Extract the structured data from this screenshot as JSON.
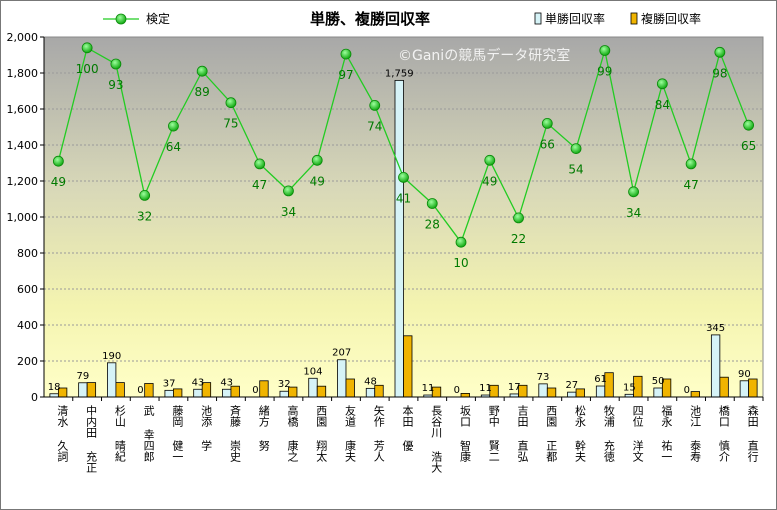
{
  "chart_data": {
    "type": "bar",
    "title": "単勝、複勝回収率",
    "watermark": "©Ganiの競馬データ研究室",
    "categories": [
      "清水 久詞",
      "中内田 充正",
      "杉山 晴紀",
      "武 幸四郎",
      "藤岡 健一",
      "池添 学",
      "斉藤 崇史",
      "緒方 努",
      "高橋 康之",
      "西園 翔太",
      "友道 康夫",
      "矢作 芳人",
      "本田 優",
      "長谷川 浩大",
      "坂口 智康",
      "野中 賢二",
      "吉田 直弘",
      "西園 正都",
      "松永 幹夫",
      "牧浦 充徳",
      "四位 洋文",
      "福永 祐一",
      "池江 泰寿",
      "橋口 慎介",
      "森田 直行"
    ],
    "series": [
      {
        "name": "単勝回収率",
        "color": "#d6f3f7",
        "values": [
          18,
          79,
          190,
          0,
          37,
          43,
          43,
          0,
          32,
          104,
          207,
          48,
          1759,
          11,
          0,
          11,
          17,
          73,
          27,
          61,
          15,
          50,
          0,
          345,
          90
        ]
      },
      {
        "name": "複勝回収率",
        "color": "#f0b400",
        "values": [
          50,
          80,
          80,
          75,
          45,
          80,
          60,
          90,
          55,
          60,
          100,
          65,
          340,
          55,
          20,
          65,
          65,
          50,
          45,
          135,
          115,
          100,
          30,
          110,
          100
        ]
      },
      {
        "name": "検定",
        "color": "#22cc22",
        "type": "line",
        "values": [
          1310,
          1940,
          1850,
          1120,
          1505,
          1810,
          1635,
          1295,
          1145,
          1315,
          1905,
          1620,
          1220,
          1075,
          860,
          1315,
          995,
          1520,
          1380,
          1925,
          1140,
          1740,
          1295,
          1915,
          1510
        ],
        "labels": [
          49,
          100,
          93,
          32,
          64,
          89,
          75,
          47,
          34,
          49,
          97,
          74,
          41,
          28,
          10,
          49,
          22,
          66,
          54,
          99,
          34,
          84,
          47,
          98,
          65
        ]
      }
    ],
    "ylim": [
      0,
      2000
    ],
    "yticks": [
      "0",
      "200",
      "400",
      "600",
      "800",
      "1,000",
      "1,200",
      "1,400",
      "1,600",
      "1,800",
      "2,000"
    ],
    "legend_position": "top",
    "grid": true
  }
}
